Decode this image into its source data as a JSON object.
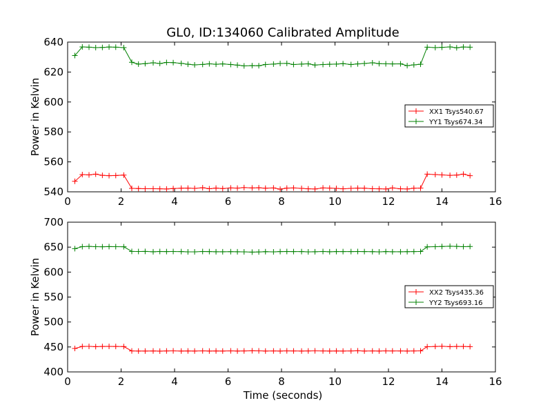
{
  "chart_data": [
    {
      "type": "line",
      "title": "GL0, ID:134060 Calibrated Amplitude",
      "xlabel": "",
      "ylabel": "Power in Kelvin",
      "xlim": [
        0,
        16
      ],
      "ylim": [
        540,
        640
      ],
      "xticks": [
        "0",
        "2",
        "4",
        "6",
        "8",
        "10",
        "12",
        "14",
        "16"
      ],
      "yticks": [
        "540",
        "560",
        "580",
        "600",
        "620",
        "640"
      ],
      "legend_position": "center-right",
      "x": [
        0.27,
        0.55,
        0.8,
        1.05,
        1.3,
        1.55,
        1.8,
        2.1,
        2.4,
        2.65,
        2.9,
        3.2,
        3.45,
        3.7,
        3.95,
        4.25,
        4.5,
        4.75,
        5.05,
        5.3,
        5.55,
        5.8,
        6.1,
        6.35,
        6.6,
        6.9,
        7.15,
        7.4,
        7.7,
        7.95,
        8.2,
        8.45,
        8.75,
        9.0,
        9.25,
        9.55,
        9.8,
        10.05,
        10.3,
        10.6,
        10.85,
        11.1,
        11.4,
        11.65,
        11.9,
        12.15,
        12.45,
        12.7,
        12.95,
        13.2,
        13.45,
        13.75,
        14.0,
        14.3,
        14.55,
        14.8,
        15.05
      ],
      "series": [
        {
          "name": "XX1 Tsys540.67",
          "color": "#ff0000",
          "values": [
            547.0,
            551.5,
            551.3,
            551.8,
            551.0,
            550.8,
            550.9,
            551.2,
            542.3,
            542.2,
            542.1,
            542.1,
            542.0,
            541.9,
            542.2,
            542.4,
            542.5,
            542.3,
            542.7,
            542.1,
            542.5,
            542.2,
            542.6,
            542.5,
            542.8,
            542.6,
            542.7,
            542.4,
            542.6,
            541.8,
            542.5,
            542.6,
            542.3,
            542.0,
            541.9,
            542.6,
            542.5,
            542.3,
            542.0,
            542.3,
            542.5,
            542.4,
            542.1,
            542.0,
            541.9,
            542.6,
            542.0,
            541.9,
            542.4,
            542.5,
            551.8,
            551.5,
            551.3,
            551.0,
            551.2,
            551.8,
            550.8
          ]
        },
        {
          "name": "YY1 Tsys674.34",
          "color": "#008000",
          "values": [
            631.0,
            636.8,
            636.6,
            636.3,
            636.4,
            636.7,
            636.6,
            636.3,
            626.5,
            625.3,
            625.6,
            626.2,
            625.7,
            626.4,
            626.3,
            625.8,
            625.2,
            624.8,
            625.1,
            625.5,
            625.2,
            625.4,
            625.0,
            624.6,
            624.1,
            624.3,
            624.2,
            625.0,
            625.3,
            625.7,
            625.8,
            625.0,
            625.3,
            625.5,
            624.7,
            625.0,
            625.2,
            625.3,
            625.6,
            625.0,
            625.4,
            625.7,
            626.2,
            625.6,
            625.5,
            625.4,
            625.5,
            624.3,
            624.8,
            625.2,
            636.6,
            636.3,
            636.5,
            636.8,
            636.2,
            636.7,
            636.6
          ]
        }
      ]
    },
    {
      "type": "line",
      "title": "",
      "xlabel": "Time (seconds)",
      "ylabel": "Power in Kelvin",
      "xlim": [
        0,
        16
      ],
      "ylim": [
        400,
        700
      ],
      "xticks": [
        "0",
        "2",
        "4",
        "6",
        "8",
        "10",
        "12",
        "14",
        "16"
      ],
      "yticks": [
        "400",
        "450",
        "500",
        "550",
        "600",
        "650",
        "700"
      ],
      "legend_position": "center-right",
      "x": [
        0.27,
        0.55,
        0.8,
        1.05,
        1.3,
        1.55,
        1.8,
        2.1,
        2.4,
        2.65,
        2.9,
        3.2,
        3.45,
        3.7,
        3.95,
        4.25,
        4.5,
        4.75,
        5.05,
        5.3,
        5.55,
        5.8,
        6.1,
        6.35,
        6.6,
        6.9,
        7.15,
        7.4,
        7.7,
        7.95,
        8.2,
        8.45,
        8.75,
        9.0,
        9.25,
        9.55,
        9.8,
        10.05,
        10.3,
        10.6,
        10.85,
        11.1,
        11.4,
        11.65,
        11.9,
        12.15,
        12.45,
        12.7,
        12.95,
        13.2,
        13.45,
        13.75,
        14.0,
        14.3,
        14.55,
        14.8,
        15.05
      ],
      "series": [
        {
          "name": "XX2 Tsys435.36",
          "color": "#ff0000",
          "values": [
            447.0,
            451.0,
            451.2,
            450.6,
            451.0,
            451.1,
            450.9,
            450.8,
            442.0,
            441.8,
            441.9,
            442.0,
            441.7,
            442.0,
            442.1,
            441.9,
            442.0,
            441.8,
            442.2,
            441.9,
            442.0,
            441.8,
            442.1,
            441.9,
            442.0,
            442.3,
            442.1,
            441.9,
            442.0,
            441.8,
            442.1,
            442.0,
            441.9,
            442.0,
            442.1,
            442.0,
            441.8,
            442.0,
            441.9,
            442.0,
            442.3,
            441.9,
            442.0,
            441.8,
            442.1,
            442.0,
            442.0,
            441.9,
            442.0,
            442.1,
            450.5,
            451.0,
            451.3,
            450.7,
            450.9,
            451.0,
            450.6
          ]
        },
        {
          "name": "YY2 Tsys693.16",
          "color": "#008000",
          "values": [
            647.0,
            651.0,
            651.5,
            651.0,
            650.8,
            651.1,
            651.0,
            650.7,
            641.5,
            641.2,
            641.4,
            640.8,
            641.3,
            641.1,
            641.2,
            641.0,
            640.5,
            640.6,
            641.2,
            641.0,
            640.7,
            640.8,
            640.9,
            640.7,
            640.6,
            640.0,
            640.4,
            640.9,
            640.6,
            641.0,
            641.2,
            641.0,
            641.1,
            640.5,
            640.8,
            641.2,
            640.7,
            641.0,
            641.1,
            641.0,
            641.2,
            641.0,
            640.9,
            640.6,
            641.0,
            640.8,
            640.7,
            640.9,
            641.0,
            641.2,
            650.5,
            651.0,
            651.3,
            651.8,
            651.4,
            651.0,
            651.2
          ]
        }
      ]
    }
  ]
}
